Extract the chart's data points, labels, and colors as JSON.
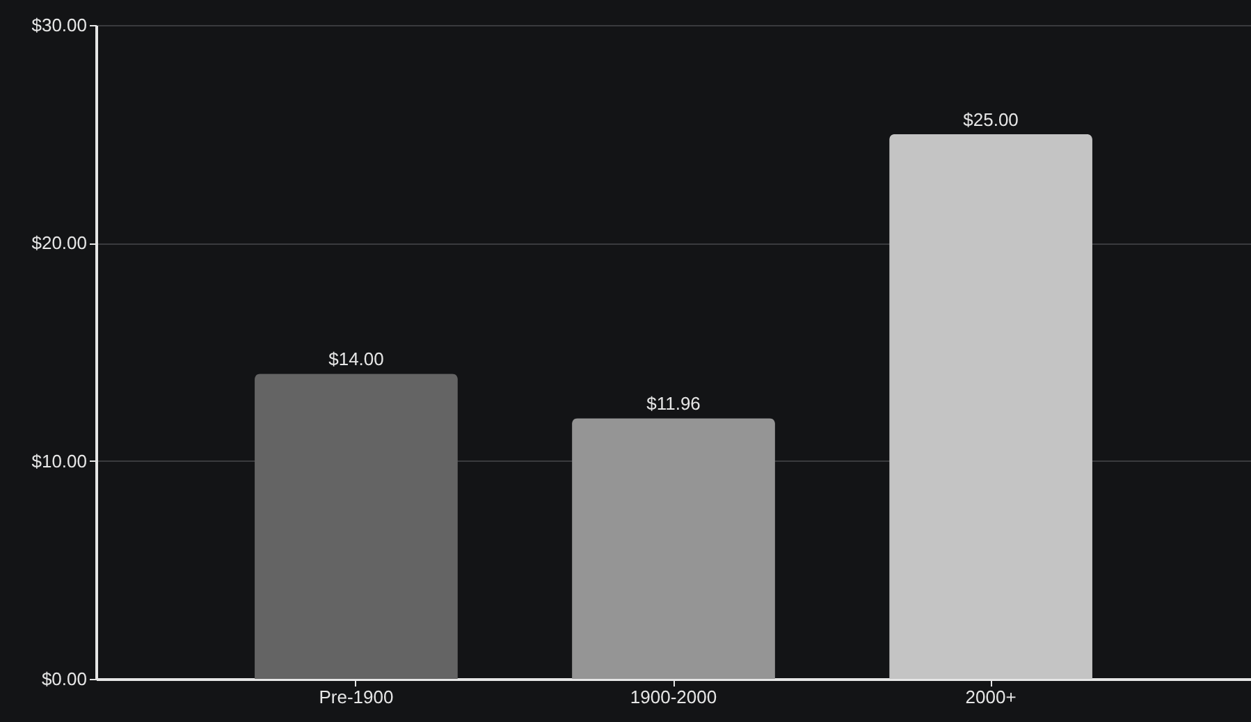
{
  "chart_data": {
    "type": "bar",
    "categories": [
      "Pre-1900",
      "1900-2000",
      "2000+"
    ],
    "values": [
      14,
      11.96,
      25
    ],
    "colors": [
      "#646464",
      "#959595",
      "#c4c4c4"
    ],
    "value_labels": [
      "$14.00",
      "$11.96",
      "$25.00"
    ],
    "ylim": [
      0,
      30
    ],
    "yticks": [
      {
        "value": 0,
        "label": "$0.00"
      },
      {
        "value": 10,
        "label": "$10.00"
      },
      {
        "value": 20,
        "label": "$20.00"
      },
      {
        "value": 30,
        "label": "$30.00"
      }
    ],
    "grid": "y"
  }
}
